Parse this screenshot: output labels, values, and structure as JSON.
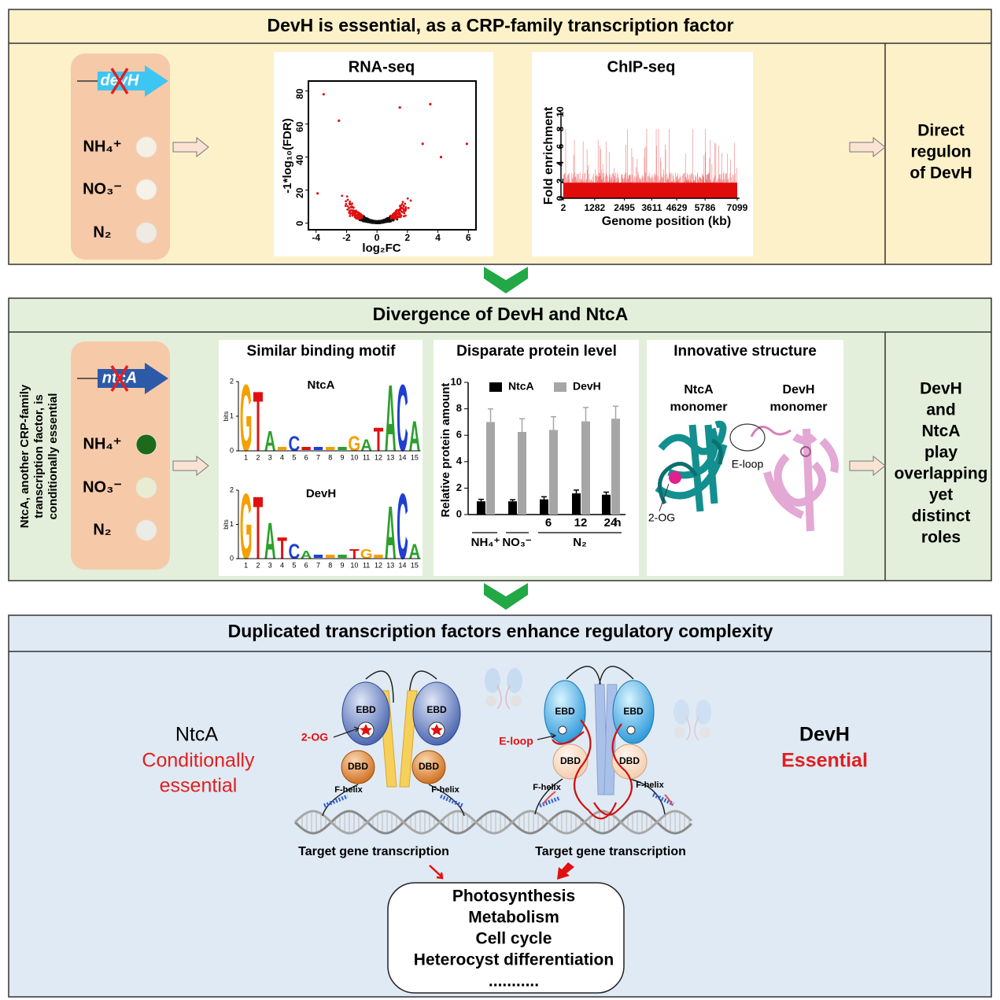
{
  "panel1": {
    "title": "DevH is essential, as a CRP-family transcription factor",
    "gene": "devH",
    "conditions": [
      "NH₄⁺",
      "NO₃⁻",
      "N₂"
    ],
    "rnaseq": {
      "title": "RNA-seq",
      "x_label": "log₂FC",
      "y_label": "-1*log₁₀(FDR)",
      "xlim": [
        -4.5,
        6.5
      ],
      "ylim": [
        -4,
        86
      ],
      "xticks": [
        -4,
        -2,
        0,
        2,
        4,
        6
      ],
      "yticks": [
        0,
        20,
        40,
        60,
        80
      ]
    },
    "chipseq": {
      "title": "ChIP-seq",
      "x_label": "Genome position (kb)",
      "y_label": "Fold enrichment",
      "xlim": [
        2,
        7099
      ],
      "xticks": [
        2,
        1282,
        2495,
        3611,
        4629,
        5786,
        7099
      ],
      "ylim": [
        0,
        10
      ],
      "yticks": [
        0,
        2,
        4,
        6,
        8,
        10
      ]
    },
    "result": [
      "Direct",
      "regulon",
      "of DevH"
    ]
  },
  "panel2": {
    "title": "Divergence of DevH and NtcA",
    "side_text": [
      "NtcA, another CRP-family",
      "transcription factor, is",
      "conditionally essential"
    ],
    "gene": "ntcA",
    "conditions": [
      "NH₄⁺",
      "NO₃⁻",
      "N₂"
    ],
    "motif": {
      "title": "Similar binding motif",
      "y_label": "bits",
      "ylim": [
        0,
        2
      ],
      "yticks": [
        0,
        1,
        2
      ],
      "positions": [
        1,
        2,
        3,
        4,
        5,
        6,
        7,
        8,
        9,
        10,
        11,
        12,
        13,
        14,
        15
      ],
      "logos": [
        {
          "name": "NtcA",
          "letters": [
            "G",
            "T",
            "A",
            null,
            "C",
            null,
            null,
            null,
            null,
            "G",
            "A",
            "T",
            "A",
            "C",
            "A"
          ],
          "heights": [
            2,
            1.8,
            0.6,
            null,
            0.45,
            null,
            null,
            null,
            null,
            0.45,
            0.35,
            0.7,
            2,
            2,
            0.9
          ]
        },
        {
          "name": "DevH",
          "letters": [
            "G",
            "T",
            "A",
            "T",
            "C",
            "A",
            null,
            null,
            null,
            "T",
            "G",
            null,
            "A",
            "C",
            "A"
          ],
          "heights": [
            2,
            1.9,
            1.1,
            0.65,
            0.45,
            0.25,
            null,
            null,
            null,
            0.3,
            0.3,
            null,
            1.6,
            2,
            0.45
          ]
        }
      ]
    },
    "protein": {
      "type": "bar",
      "title": "Disparate protein level",
      "y_label": "Relative protein amount",
      "ylim": [
        0,
        10
      ],
      "yticks": [
        0,
        2,
        4,
        6,
        8,
        10
      ],
      "categories": [
        null,
        null,
        "6",
        "12",
        "24"
      ],
      "x_unit": "h",
      "groups": [
        "NH₄⁺",
        "NO₃⁻",
        "N₂"
      ],
      "series": [
        {
          "name": "NtcA",
          "color": "#000000",
          "values": [
            1.0,
            1.0,
            1.15,
            1.6,
            1.5
          ],
          "errors": [
            0.15,
            0.12,
            0.2,
            0.25,
            0.2
          ]
        },
        {
          "name": "DevH",
          "color": "#a6a6a6",
          "values": [
            7.0,
            6.25,
            6.4,
            7.05,
            7.25
          ],
          "errors": [
            1.0,
            1.0,
            1.0,
            1.05,
            0.95
          ]
        }
      ]
    },
    "structure": {
      "title": "Innovative structure",
      "monomers": [
        [
          "NtcA",
          "monomer"
        ],
        [
          "DevH",
          "monomer"
        ]
      ],
      "loop": "E-loop",
      "ligand": "2-OG"
    },
    "result": [
      "DevH",
      "and",
      "NtcA",
      "play",
      "overlapping",
      "yet",
      "distinct",
      "roles"
    ]
  },
  "panel3": {
    "title": "Duplicated transcription factors enhance regulatory complexity",
    "left": {
      "name": "NtcA",
      "status": [
        "Conditionally",
        "essential"
      ]
    },
    "right": {
      "name": "DevH",
      "status": [
        "Essential"
      ]
    },
    "domains": {
      "ebd": "EBD",
      "dbd": "DBD",
      "helix": "F-helix"
    },
    "ligand": "2-OG",
    "loop": "E-loop",
    "transcription": "Target gene transcription",
    "outcomes": [
      "Photosynthesis",
      "Metabolism",
      "Cell cycle",
      "Heterocyst differentiation",
      "..........."
    ]
  }
}
